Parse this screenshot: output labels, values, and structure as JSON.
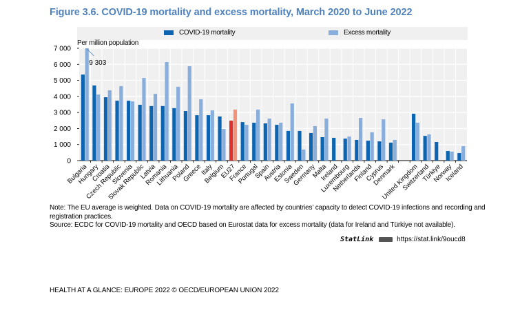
{
  "figure": {
    "title": "Figure 3.6. COVID-19 mortality and excess mortality, March 2020 to June 2022",
    "y_unit_label": "Per million population",
    "note": "Note: The EU average is weighted. Data on COVID-19 mortality are affected by countries’ capacity to detect COVID-19 infections and recording and registration practices.",
    "source": "Source: ECDC for COVID-19 mortality and OECD based on Eurostat data for excess mortality (data for Ireland and Türkiye not available).",
    "statlink_label": "StatLink",
    "statlink_icon": "statlink-logo-icon",
    "statlink_url": "https://stat.link/9oucd8",
    "footer": "HEALTH AT A GLANCE: EUROPE 2022 © OECD/EUROPEAN UNION 2022"
  },
  "colors": {
    "title": "#4f81bd",
    "covid": "#0d64b0",
    "excess": "#8aaedb",
    "eu_covid": "#e0302b",
    "eu_excess": "#f4937a",
    "plot_bg": "#f0f0f0",
    "grid": "#ffffff"
  },
  "chart_data": {
    "type": "bar",
    "title": "Figure 3.6. COVID-19 mortality and excess mortality, March 2020 to June 2022",
    "xlabel": "",
    "ylabel": "Per million population",
    "ylim": [
      0,
      7000
    ],
    "yticks": [
      0,
      1000,
      2000,
      3000,
      4000,
      5000,
      6000,
      7000
    ],
    "ytick_labels": [
      "0",
      "1 000",
      "2 000",
      "3 000",
      "4 000",
      "5 000",
      "6 000",
      "7 000"
    ],
    "grid": true,
    "legend_position": "top",
    "highlight_category": "EU27",
    "categories": [
      "Bulgaria",
      "Hungary",
      "Croatia",
      "Czech Republic",
      "Slovenia",
      "Slovak Republic",
      "Latvia",
      "Romania",
      "Lithuania",
      "Poland",
      "Greece",
      "Italy",
      "Belgium",
      "EU27",
      "France",
      "Portugal",
      "Spain",
      "Austria",
      "Estonia",
      "Sweden",
      "Germany",
      "Malta",
      "Ireland",
      "Luxembourg",
      "Netherlands",
      "Finland",
      "Cyprus",
      "Denmark",
      "",
      "United Kingdom",
      "Switzerland",
      "Türkiye",
      "Norway",
      "Iceland"
    ],
    "series": [
      {
        "name": "COVID-19 mortality",
        "values": [
          5360,
          4680,
          3950,
          3730,
          3730,
          3480,
          3400,
          3400,
          3270,
          3090,
          2830,
          2830,
          2750,
          2490,
          2400,
          2360,
          2320,
          2230,
          1850,
          1850,
          1720,
          1460,
          1420,
          1370,
          1290,
          1240,
          1200,
          1120,
          null,
          2920,
          1540,
          1160,
          600,
          470
        ]
      },
      {
        "name": "Excess mortality",
        "values": [
          9303,
          4120,
          4380,
          4640,
          3690,
          5150,
          4160,
          6140,
          4600,
          5880,
          3820,
          3130,
          1970,
          3180,
          2230,
          3180,
          2620,
          2360,
          3560,
          690,
          2150,
          2620,
          null,
          1500,
          2660,
          1760,
          2570,
          1290,
          null,
          2360,
          1630,
          null,
          560,
          900
        ]
      }
    ],
    "annotations": [
      {
        "category": "Bulgaria",
        "series": "Excess mortality",
        "text": "9 303",
        "note": "bar truncated at axis maximum"
      }
    ]
  }
}
